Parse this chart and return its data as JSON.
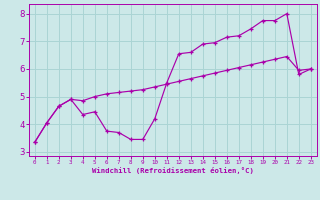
{
  "xlabel": "Windchill (Refroidissement éolien,°C)",
  "xlim": [
    -0.5,
    23.5
  ],
  "ylim": [
    2.85,
    8.35
  ],
  "xticks": [
    0,
    1,
    2,
    3,
    4,
    5,
    6,
    7,
    8,
    9,
    10,
    11,
    12,
    13,
    14,
    15,
    16,
    17,
    18,
    19,
    20,
    21,
    22,
    23
  ],
  "yticks": [
    3,
    4,
    5,
    6,
    7,
    8
  ],
  "bg_color": "#cce8e8",
  "line_color": "#aa00aa",
  "grid_color": "#aad4d4",
  "line1_x": [
    0,
    1,
    2,
    3,
    4,
    5,
    6,
    7,
    8,
    9,
    10,
    11,
    12,
    13,
    14,
    15,
    16,
    17,
    18,
    19,
    20,
    21,
    22,
    23
  ],
  "line1_y": [
    3.35,
    4.05,
    4.65,
    4.9,
    4.35,
    4.45,
    3.75,
    3.7,
    3.45,
    3.45,
    4.2,
    5.5,
    6.55,
    6.6,
    6.9,
    6.95,
    7.15,
    7.2,
    7.45,
    7.75,
    7.75,
    8.0,
    5.8,
    6.0
  ],
  "line2_x": [
    0,
    1,
    2,
    3,
    4,
    5,
    6,
    7,
    8,
    9,
    10,
    11,
    12,
    13,
    14,
    15,
    16,
    17,
    18,
    19,
    20,
    21,
    22,
    23
  ],
  "line2_y": [
    3.35,
    4.05,
    4.65,
    4.9,
    4.85,
    5.0,
    5.1,
    5.15,
    5.2,
    5.25,
    5.35,
    5.45,
    5.55,
    5.65,
    5.75,
    5.85,
    5.95,
    6.05,
    6.15,
    6.25,
    6.35,
    6.45,
    5.95,
    6.0
  ],
  "xtick_labels": [
    "0",
    "1",
    "2",
    "3",
    "4",
    "5",
    "6",
    "7",
    "8",
    "9",
    "10",
    "11",
    "12",
    "13",
    "14",
    "15",
    "16",
    "17",
    "18",
    "19",
    "20",
    "21",
    "22",
    "23"
  ]
}
